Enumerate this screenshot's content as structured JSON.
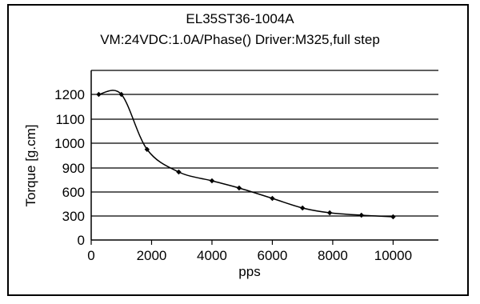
{
  "chart_data": {
    "type": "line",
    "title": "EL35ST36-1004A",
    "subtitle": "VM:24VDC:1.0A/Phase() Driver:M325,full step",
    "xlabel": "pps",
    "ylabel": "Torque [g.cm]",
    "xlim": [
      0,
      11500
    ],
    "ylim": [
      0,
      1300
    ],
    "x_ticks": [
      0,
      2000,
      4000,
      6000,
      8000,
      10000
    ],
    "y_tick_labels": [
      "0",
      "300",
      "600",
      "900",
      "1000",
      "1100",
      "1200"
    ],
    "y_gridlines_at_labels": true,
    "grid": "horizontal",
    "legend": "none",
    "series": [
      {
        "x": [
          250,
          1000,
          1850,
          2900,
          4000,
          4900,
          6000,
          7000,
          7900,
          8950,
          10000
        ],
        "y": [
          1200,
          1200,
          975,
          850,
          740,
          650,
          520,
          400,
          340,
          310,
          290
        ]
      }
    ],
    "colors": {
      "line": "#000000",
      "marker": "#000000",
      "grid": "#000000"
    }
  }
}
